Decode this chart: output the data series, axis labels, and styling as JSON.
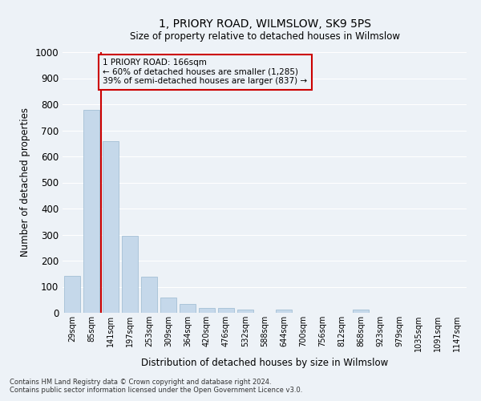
{
  "title": "1, PRIORY ROAD, WILMSLOW, SK9 5PS",
  "subtitle": "Size of property relative to detached houses in Wilmslow",
  "xlabel": "Distribution of detached houses by size in Wilmslow",
  "ylabel": "Number of detached properties",
  "bar_color": "#c5d8ea",
  "bar_edge_color": "#9ab8d0",
  "categories": [
    "29sqm",
    "85sqm",
    "141sqm",
    "197sqm",
    "253sqm",
    "309sqm",
    "364sqm",
    "420sqm",
    "476sqm",
    "532sqm",
    "588sqm",
    "644sqm",
    "700sqm",
    "756sqm",
    "812sqm",
    "868sqm",
    "923sqm",
    "979sqm",
    "1035sqm",
    "1091sqm",
    "1147sqm"
  ],
  "values": [
    143,
    778,
    658,
    295,
    138,
    57,
    33,
    20,
    20,
    11,
    0,
    11,
    0,
    0,
    0,
    11,
    0,
    0,
    0,
    0,
    0
  ],
  "ylim": [
    0,
    1000
  ],
  "yticks": [
    0,
    100,
    200,
    300,
    400,
    500,
    600,
    700,
    800,
    900,
    1000
  ],
  "property_line_x": 1.5,
  "annotation_line1": "1 PRIORY ROAD: 166sqm",
  "annotation_line2": "← 60% of detached houses are smaller (1,285)",
  "annotation_line3": "39% of semi-detached houses are larger (837) →",
  "line_color": "#cc0000",
  "annotation_box_color": "#cc0000",
  "footer_line1": "Contains HM Land Registry data © Crown copyright and database right 2024.",
  "footer_line2": "Contains public sector information licensed under the Open Government Licence v3.0.",
  "bg_color": "#edf2f7",
  "grid_color": "#ffffff"
}
